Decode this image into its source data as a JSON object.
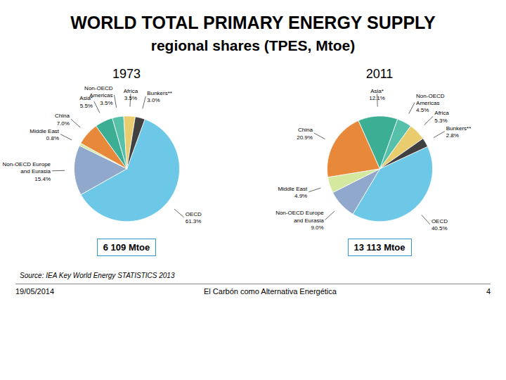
{
  "title": "WORLD TOTAL PRIMARY ENERGY SUPPLY",
  "subtitle": "regional shares (TPES, Mtoe)",
  "caption": "Source: IEA Key World Energy STATISTICS 2013",
  "annotations": [
    "19/05/2014",
    "El Carbón como Alternativa Energética",
    "4"
  ],
  "chart_data": [
    {
      "type": "pie",
      "title": "1973",
      "categories": [
        "OECD",
        "Non-OECD Europe\nand Eurasia",
        "Middle East",
        "China",
        "Asia*",
        "Non-OECD\nAmericas",
        "Africa",
        "Bunkers**"
      ],
      "values": [
        61.3,
        15.4,
        0.8,
        7.0,
        5.5,
        3.5,
        3.5,
        3.0
      ],
      "value_labels": [
        "61.3%",
        "15.4%",
        "0.8%",
        "7.0%",
        "5.5%",
        "3.5%",
        "3.5%",
        "3.0%"
      ],
      "colors": [
        "#6DC8E8",
        "#8FA8CC",
        "#D4E8A0",
        "#E8883A",
        "#3BAE94",
        "#56C0AA",
        "#E8CC6E",
        "#404040"
      ],
      "data_labels": true,
      "annotations": [
        "6 109 Mtoe"
      ]
    },
    {
      "type": "pie",
      "title": "2011",
      "categories": [
        "OECD",
        "Non-OECD Europe\nand Eurasia",
        "Middle East",
        "China",
        "Asia*",
        "Non-OECD\nAmericas",
        "Africa",
        "Bunkers**"
      ],
      "values": [
        40.5,
        9.0,
        4.9,
        20.9,
        12.1,
        4.5,
        5.3,
        2.8
      ],
      "value_labels": [
        "40.5%",
        "9.0%",
        "4.9%",
        "20.9%",
        "12.1%",
        "4.5%",
        "5.3%",
        "2.8%"
      ],
      "colors": [
        "#6DC8E8",
        "#8FA8CC",
        "#D4E8A0",
        "#E8883A",
        "#3BAE94",
        "#56C0AA",
        "#E8CC6E",
        "#404040"
      ],
      "data_labels": true,
      "annotations": [
        "13 113 Mtoe"
      ]
    }
  ]
}
